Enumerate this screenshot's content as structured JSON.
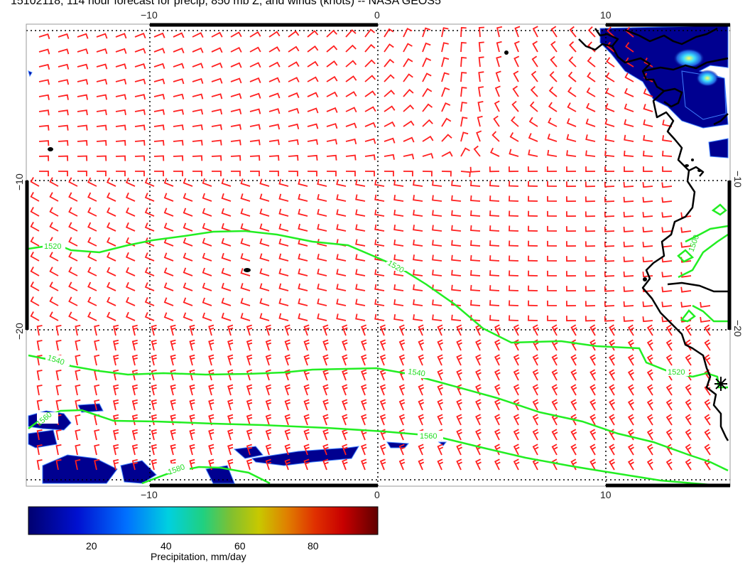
{
  "title": "15102118, 114 hour forecast for precip, 850 mb Z, and winds (knots) -- NASA GEOS5",
  "colors": {
    "wind_barbs": "#ff2020",
    "contours": "#22ee22",
    "coastline": "#000000",
    "precip_low": "#000080"
  },
  "axes": {
    "top_ticks": [
      "−10",
      "0",
      "10"
    ],
    "bottom_ticks": [
      "−10",
      "0",
      "10"
    ],
    "left_ticks": [
      "−10",
      "−20"
    ],
    "right_ticks": [
      "−10",
      "−20"
    ]
  },
  "contour_labels": [
    "1520",
    "1520",
    "1520",
    "1540",
    "1540",
    "1560",
    "1560",
    "1580",
    "1500"
  ],
  "colorbar": {
    "title": "Precipitation, mm/day",
    "ticks": [
      "20",
      "40",
      "60",
      "80"
    ]
  }
}
